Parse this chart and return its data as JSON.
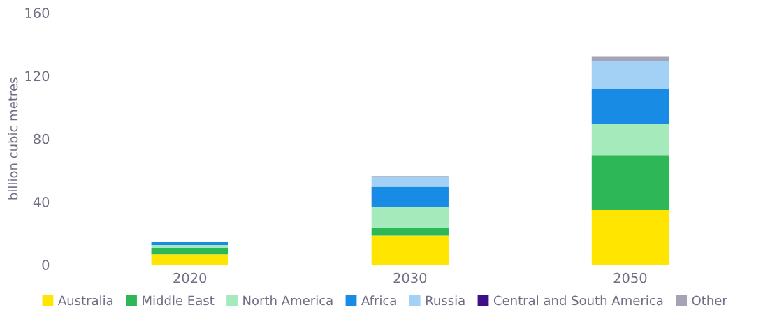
{
  "chart_data": {
    "type": "bar",
    "stacked": true,
    "ylabel": "billion cubic metres",
    "categories": [
      "2020",
      "2030",
      "2050"
    ],
    "ylim": [
      0,
      160
    ],
    "yticks": [
      0,
      40,
      80,
      120,
      160
    ],
    "grid": false,
    "legend": "bottom",
    "series": [
      {
        "name": "Australia",
        "color": "#ffe500",
        "values": [
          6.7,
          18.5,
          34.7
        ]
      },
      {
        "name": "Middle East",
        "color": "#2db757",
        "values": [
          3.6,
          5.1,
          34.9
        ]
      },
      {
        "name": "North America",
        "color": "#a5eabb",
        "values": [
          2.2,
          13,
          19.9
        ]
      },
      {
        "name": "Africa",
        "color": "#188ce5",
        "values": [
          2.2,
          13,
          21.9
        ]
      },
      {
        "name": "Russia",
        "color": "#a3d0f5",
        "values": [
          null,
          6.3,
          17.9
        ]
      },
      {
        "name": "Central and South America",
        "color": "#3d108a",
        "values": [
          0,
          0,
          0
        ]
      },
      {
        "name": "Other",
        "color": "#a5a3b5",
        "values": [
          0,
          0.4,
          3.1
        ]
      }
    ]
  }
}
